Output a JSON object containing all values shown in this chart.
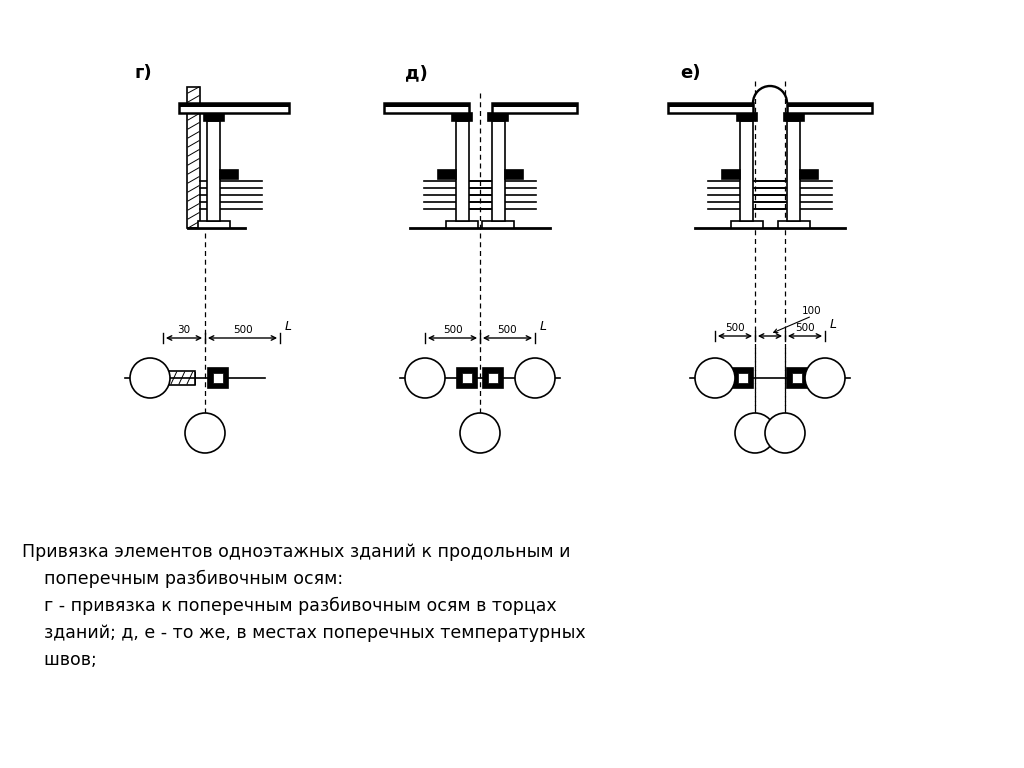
{
  "bg_color": "#ffffff",
  "text_color": "#000000",
  "label_g": "г)",
  "label_d": "д)",
  "label_e": "е)",
  "caption_line1": "Привязка элементов одноэтажных зданий к продольным и",
  "caption_line2": "    поперечным разбивочным осям:",
  "caption_line3": "    г - привязка к поперечным разбивочным осям в торцах",
  "caption_line4": "    зданий; д, е - то же, в местах поперечных температурных",
  "caption_line5": "    швов;",
  "dim_30": "30",
  "dim_500": "500",
  "dim_100": "100"
}
